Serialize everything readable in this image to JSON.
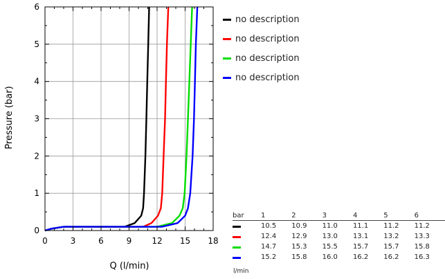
{
  "chart_data": {
    "type": "line",
    "xlabel": "Q (l/min)",
    "ylabel": "Pressure (bar)",
    "xlim": [
      0,
      18
    ],
    "ylim": [
      0,
      6
    ],
    "xticks": [
      "0",
      "3",
      "6",
      "9",
      "12",
      "15",
      "18"
    ],
    "yticks": [
      "0",
      "1",
      "2",
      "3",
      "4",
      "5",
      "6"
    ],
    "grid": true,
    "legend_placement": "right-top",
    "series": [
      {
        "name": "no description",
        "color": "#000000",
        "points": [
          [
            0,
            0
          ],
          [
            0.7,
            0.05
          ],
          [
            2,
            0.1
          ],
          [
            8.5,
            0.1
          ],
          [
            9.6,
            0.2
          ],
          [
            10.3,
            0.4
          ],
          [
            10.5,
            0.6
          ],
          [
            10.6,
            1.0
          ],
          [
            10.75,
            2
          ],
          [
            10.85,
            3
          ],
          [
            10.95,
            4
          ],
          [
            11.05,
            5
          ],
          [
            11.15,
            6
          ]
        ]
      },
      {
        "name": "no description",
        "color": "#ff0000",
        "points": [
          [
            0,
            0
          ],
          [
            0.7,
            0.05
          ],
          [
            2,
            0.1
          ],
          [
            10.5,
            0.1
          ],
          [
            11.4,
            0.2
          ],
          [
            12.1,
            0.4
          ],
          [
            12.4,
            0.6
          ],
          [
            12.55,
            1.0
          ],
          [
            12.7,
            2
          ],
          [
            12.85,
            3
          ],
          [
            12.95,
            4
          ],
          [
            13.05,
            5
          ],
          [
            13.2,
            6
          ]
        ]
      },
      {
        "name": "no description",
        "color": "#00dd00",
        "points": [
          [
            0,
            0
          ],
          [
            0.7,
            0.05
          ],
          [
            2,
            0.1
          ],
          [
            12,
            0.1
          ],
          [
            13.6,
            0.2
          ],
          [
            14.4,
            0.4
          ],
          [
            14.75,
            0.6
          ],
          [
            14.95,
            1.0
          ],
          [
            15.15,
            2
          ],
          [
            15.3,
            3
          ],
          [
            15.45,
            4
          ],
          [
            15.6,
            5
          ],
          [
            15.75,
            6
          ]
        ]
      },
      {
        "name": "no description",
        "color": "#0000ff",
        "points": [
          [
            0,
            0
          ],
          [
            0.7,
            0.05
          ],
          [
            2,
            0.1
          ],
          [
            12.5,
            0.1
          ],
          [
            14.2,
            0.2
          ],
          [
            15.0,
            0.4
          ],
          [
            15.3,
            0.6
          ],
          [
            15.55,
            1.0
          ],
          [
            15.8,
            2
          ],
          [
            15.95,
            3
          ],
          [
            16.05,
            4
          ],
          [
            16.15,
            5
          ],
          [
            16.3,
            6
          ]
        ]
      }
    ],
    "table": {
      "header_label": "bar",
      "columns": [
        "1",
        "2",
        "3",
        "4",
        "5",
        "6"
      ],
      "unit_label": "l/min",
      "rows": [
        {
          "color": "#000000",
          "values": [
            "10.5",
            "10.9",
            "11.0",
            "11.1",
            "11.2",
            "11.2"
          ]
        },
        {
          "color": "#ff0000",
          "values": [
            "12.4",
            "12.9",
            "13.0",
            "13.1",
            "13.2",
            "13.3"
          ]
        },
        {
          "color": "#00dd00",
          "values": [
            "14.7",
            "15.3",
            "15.5",
            "15.7",
            "15.7",
            "15.8"
          ]
        },
        {
          "color": "#0000ff",
          "values": [
            "15.2",
            "15.8",
            "16.0",
            "16.2",
            "16.2",
            "16.3"
          ]
        }
      ]
    }
  }
}
